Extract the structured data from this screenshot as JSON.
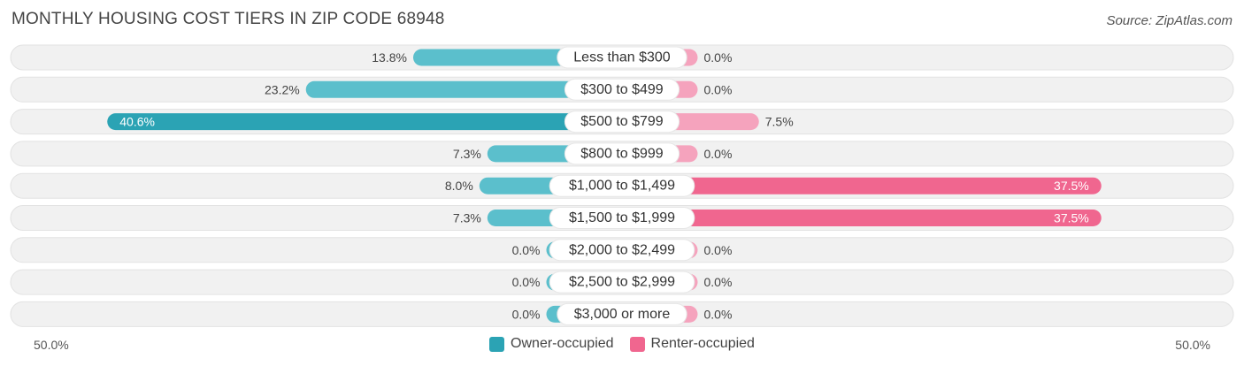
{
  "title": "MONTHLY HOUSING COST TIERS IN ZIP CODE 68948",
  "source": "Source: ZipAtlas.com",
  "colors": {
    "owner": "#5bbfcc",
    "owner_strong": "#2ba3b4",
    "renter": "#f5a3bd",
    "renter_strong": "#f0668f",
    "row_bg": "#efefef"
  },
  "axis": {
    "left_label": "50.0%",
    "right_label": "50.0%"
  },
  "legend": {
    "owner_label": "Owner-occupied",
    "renter_label": "Renter-occupied"
  },
  "chart_data": {
    "type": "bar",
    "orientation": "horizontal-diverging",
    "xlim": [
      -50,
      50
    ],
    "categories": [
      "Less than $300",
      "$300 to $499",
      "$500 to $799",
      "$800 to $999",
      "$1,000 to $1,499",
      "$1,500 to $1,999",
      "$2,000 to $2,499",
      "$2,500 to $2,999",
      "$3,000 or more"
    ],
    "series": [
      {
        "name": "Owner-occupied",
        "values": [
          13.8,
          23.2,
          40.6,
          7.3,
          8.0,
          7.3,
          0.0,
          0.0,
          0.0
        ],
        "labels": [
          "13.8%",
          "23.2%",
          "40.6%",
          "7.3%",
          "8.0%",
          "7.3%",
          "0.0%",
          "0.0%",
          "0.0%"
        ]
      },
      {
        "name": "Renter-occupied",
        "values": [
          0.0,
          0.0,
          7.5,
          0.0,
          37.5,
          37.5,
          0.0,
          0.0,
          0.0
        ],
        "labels": [
          "0.0%",
          "0.0%",
          "7.5%",
          "0.0%",
          "37.5%",
          "37.5%",
          "0.0%",
          "0.0%",
          "0.0%"
        ]
      }
    ]
  }
}
